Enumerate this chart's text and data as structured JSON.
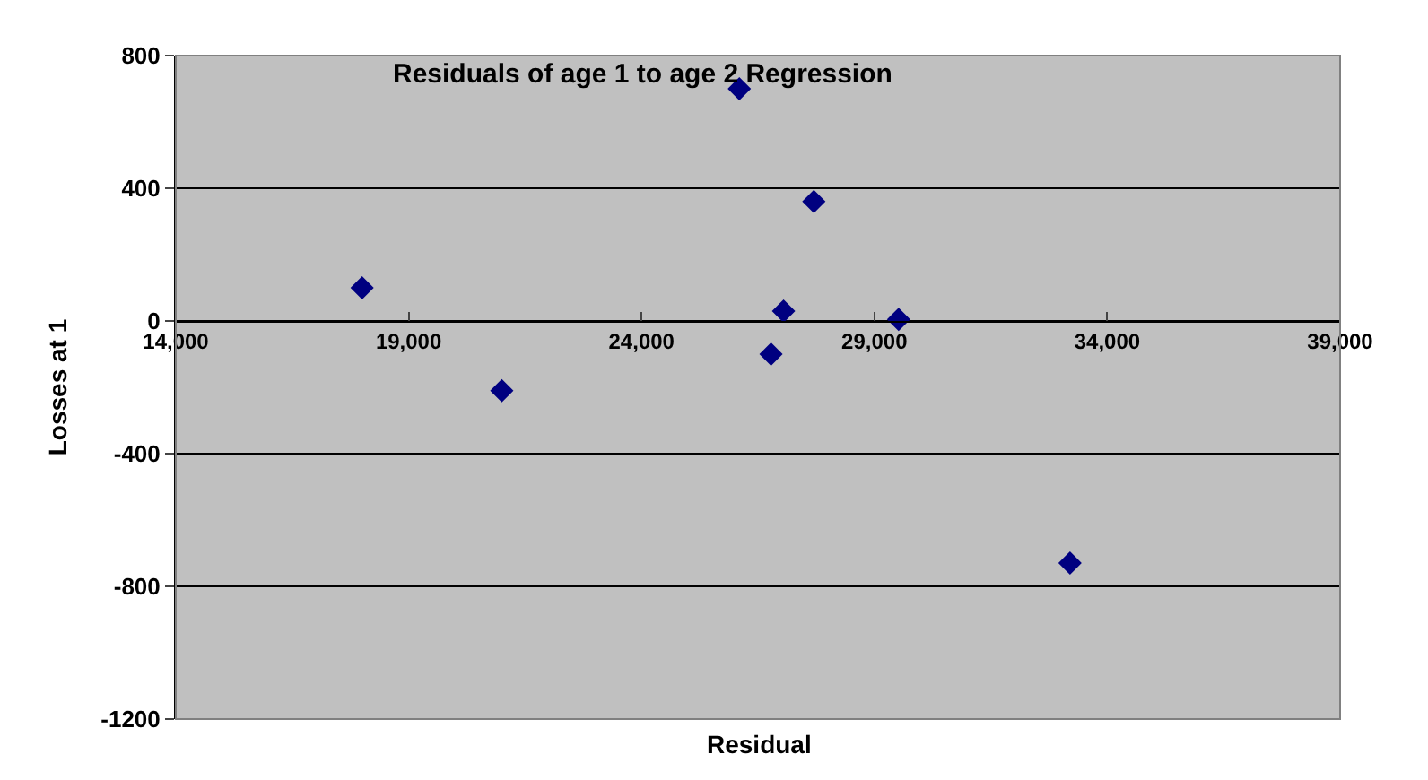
{
  "chart_data": {
    "type": "scatter",
    "title": "Residuals of age 1 to age 2 Regression",
    "xlabel": "Residual",
    "ylabel": "Losses at 1",
    "x": [
      18000,
      21000,
      26100,
      27700,
      27050,
      26780,
      29520,
      33200
    ],
    "series": [
      {
        "color": "#000080",
        "values": [
          100,
          -210,
          700,
          360,
          30,
          -100,
          5,
          -730
        ]
      }
    ],
    "xlim": [
      14000,
      39000
    ],
    "xticks": [
      {
        "value": 14000,
        "label": "14,000"
      },
      {
        "value": 19000,
        "label": "19,000"
      },
      {
        "value": 24000,
        "label": "24,000"
      },
      {
        "value": 29000,
        "label": "29,000"
      },
      {
        "value": 34000,
        "label": "34,000"
      },
      {
        "value": 39000,
        "label": "39,000"
      }
    ],
    "ylim": [
      -1200,
      800
    ],
    "yticks": [
      -1200,
      -800,
      -400,
      0,
      400,
      800
    ],
    "grid": "y",
    "marker": "diamond"
  }
}
